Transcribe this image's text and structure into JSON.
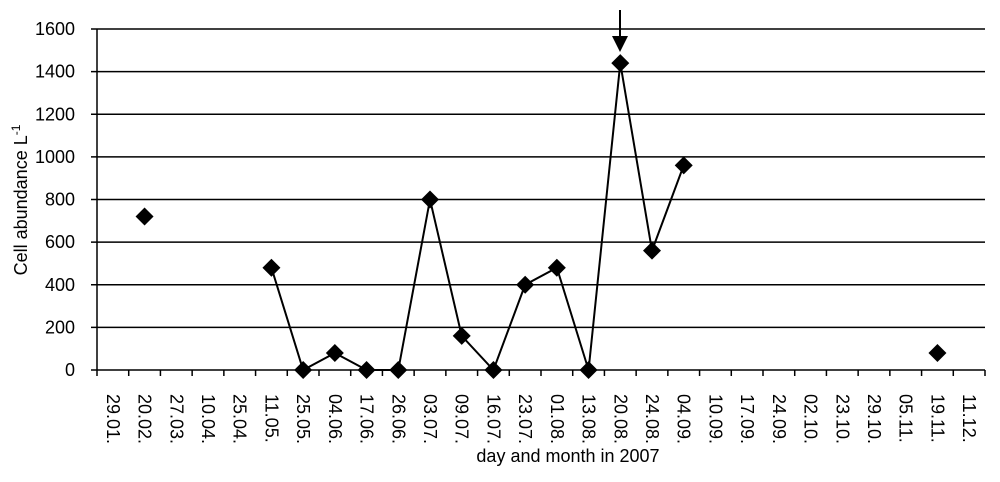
{
  "chart_data": {
    "type": "line",
    "y_label": "Cell abundance L",
    "y_label_sup": "-1",
    "x_label": "day and month in 2007",
    "categories": [
      "29.01.",
      "20.02.",
      "27.03.",
      "10.04.",
      "25.04.",
      "11.05.",
      "25.05.",
      "04.06.",
      "17.06.",
      "26.06.",
      "03.07.",
      "09.07.",
      "16.07.",
      "23.07.",
      "01.08.",
      "13.08.",
      "20.08.",
      "24.08.",
      "04.09.",
      "10.09.",
      "17.09.",
      "24.09.",
      "02.10.",
      "23.10.",
      "29.10.",
      "05.11.",
      "19.11.",
      "11.12."
    ],
    "series": [
      {
        "color": "#000000",
        "values": [
          null,
          720,
          null,
          null,
          null,
          480,
          0,
          80,
          0,
          0,
          800,
          160,
          0,
          400,
          480,
          0,
          1440,
          560,
          960,
          null,
          null,
          null,
          null,
          null,
          null,
          null,
          80,
          null
        ]
      }
    ],
    "ylim": [
      0,
      1600
    ],
    "yticks": [
      0,
      200,
      400,
      600,
      800,
      1000,
      1200,
      1400,
      1600
    ],
    "grid": true
  }
}
